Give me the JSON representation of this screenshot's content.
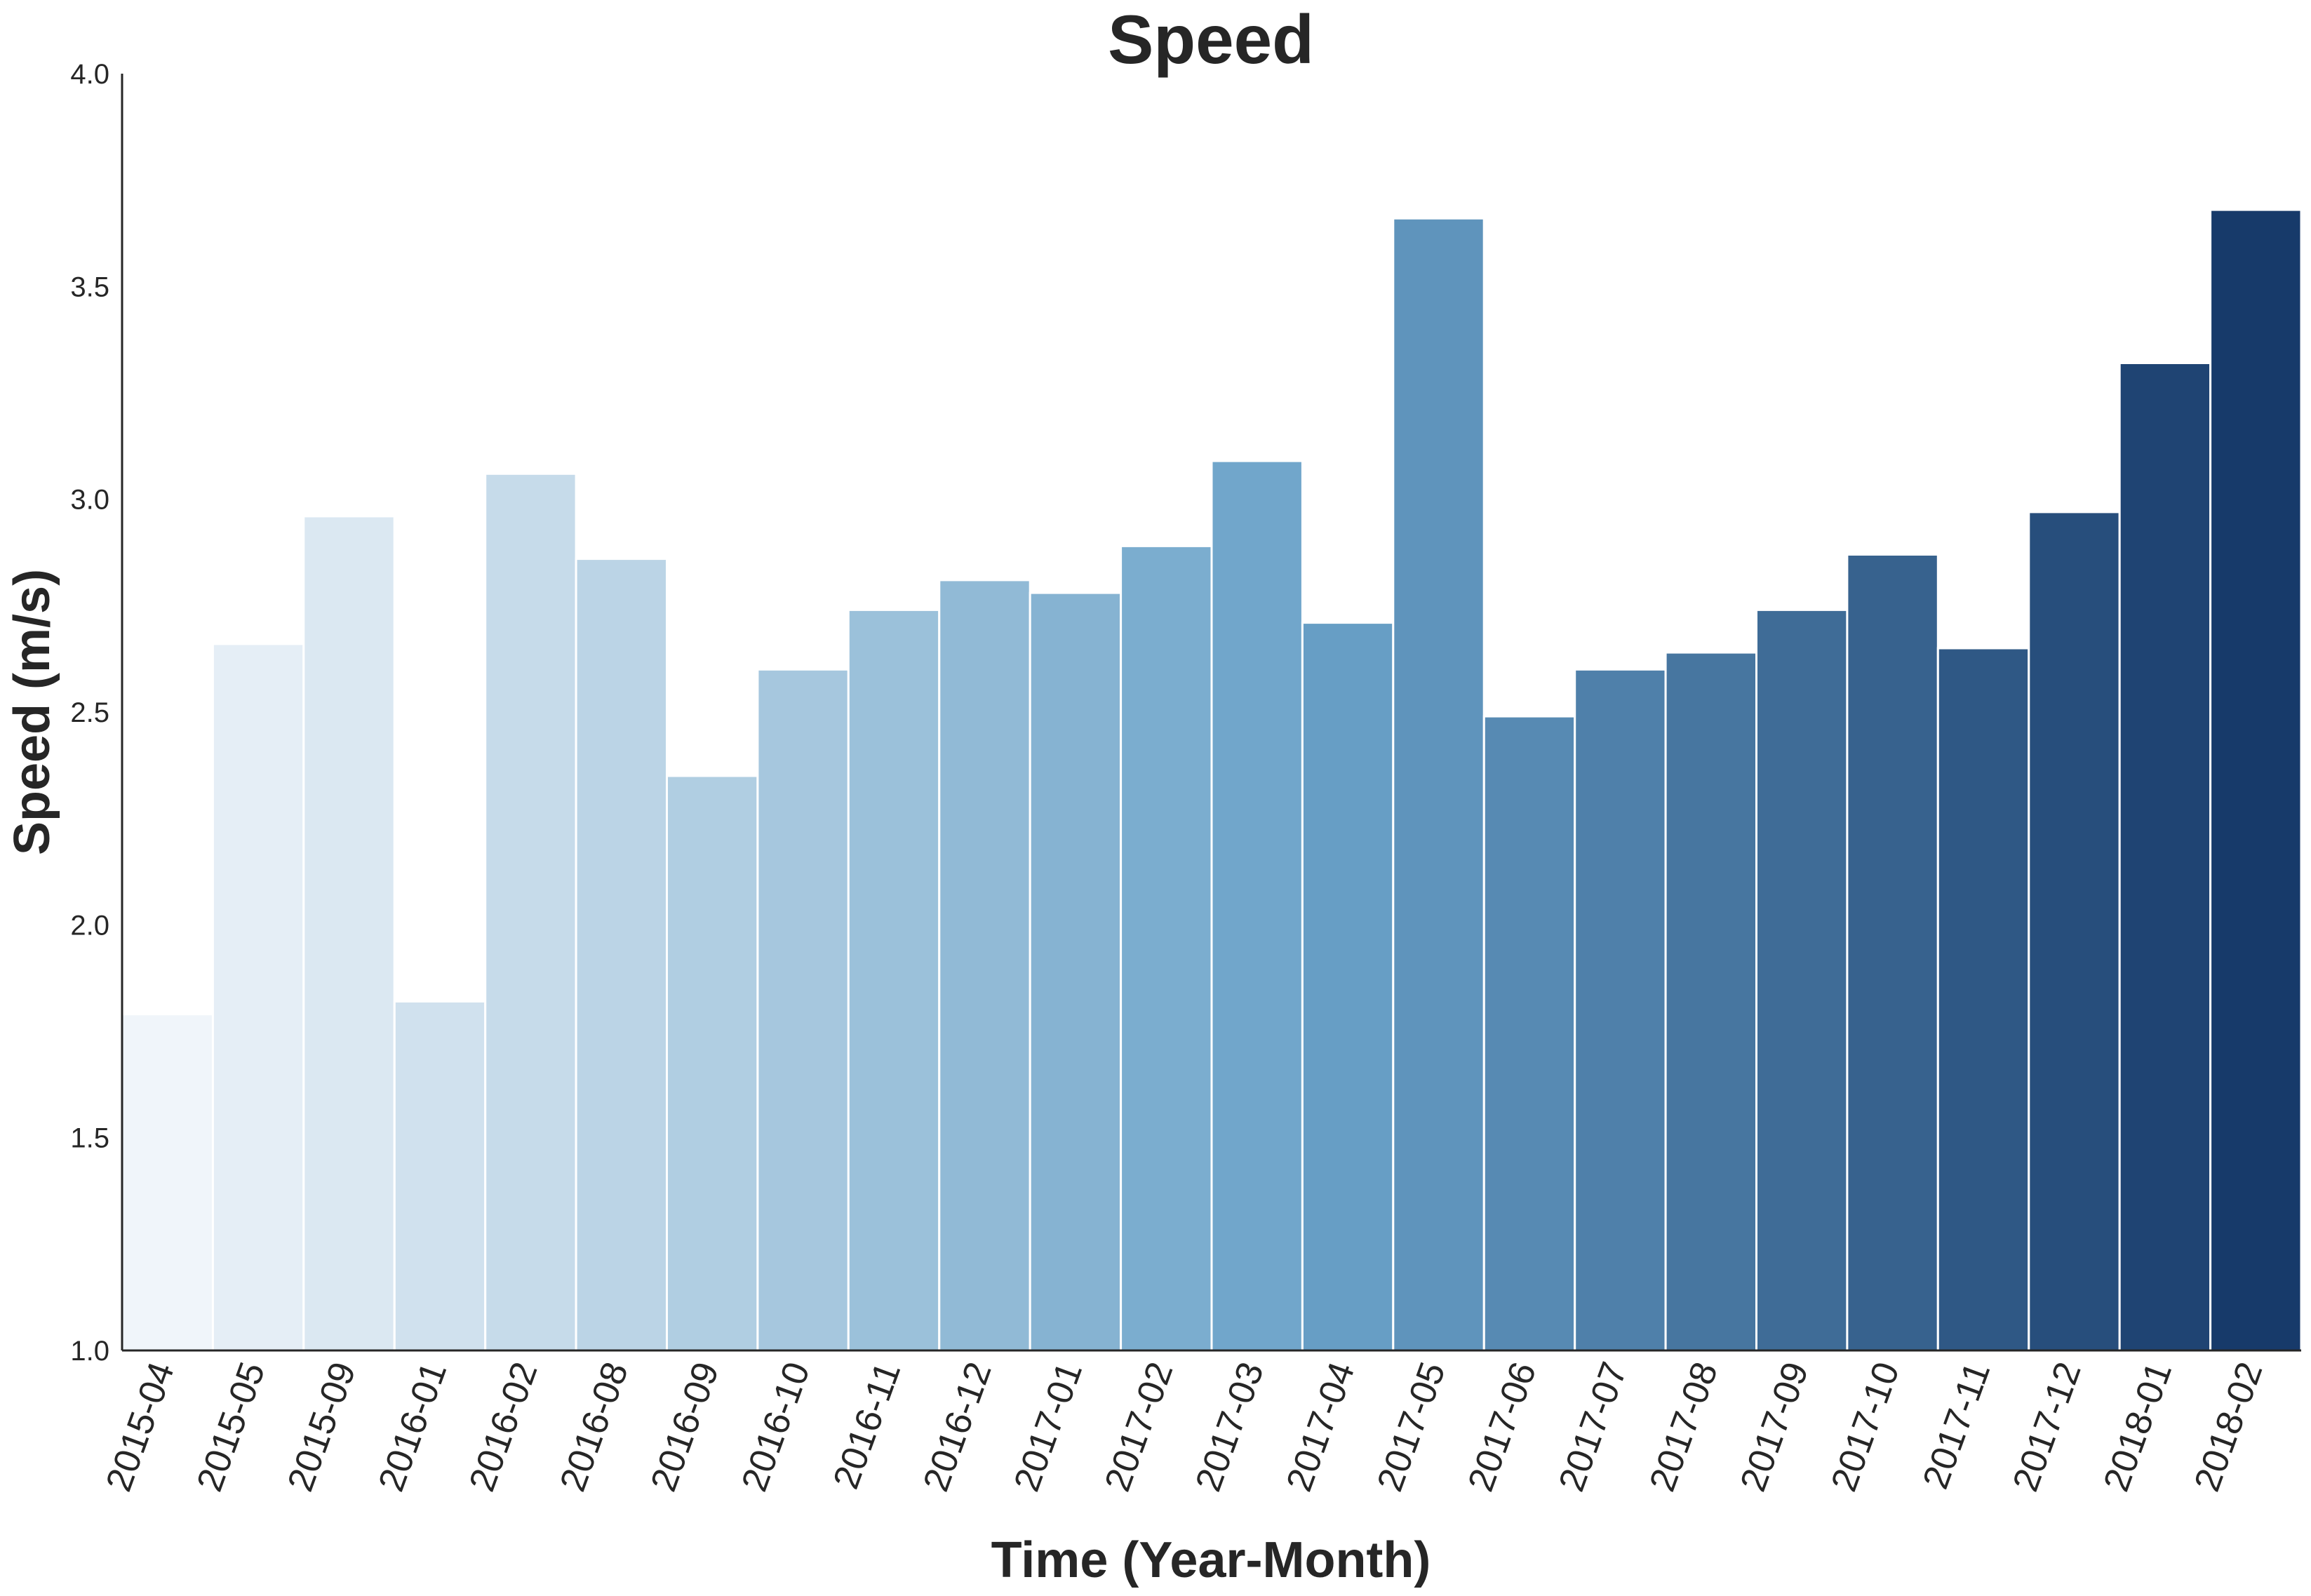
{
  "chart_data": {
    "type": "bar",
    "title": "Speed",
    "xlabel": "Time  (Year-Month)",
    "ylabel": "Speed (m/s)",
    "ylim": [
      1.0,
      4.0
    ],
    "yticks": [
      "1.0",
      "1.5",
      "2.0",
      "2.5",
      "3.0",
      "3.5",
      "4.0"
    ],
    "grid": false,
    "categories": [
      "2015-04",
      "2015-05",
      "2015-09",
      "2016-01",
      "2016-02",
      "2016-08",
      "2016-09",
      "2016-10",
      "2016-11",
      "2016-12",
      "2017-01",
      "2017-02",
      "2017-03",
      "2017-04",
      "2017-05",
      "2017-06",
      "2017-07",
      "2017-08",
      "2017-09",
      "2017-10",
      "2017-11",
      "2017-12",
      "2018-01",
      "2018-02"
    ],
    "values": [
      1.79,
      2.66,
      2.96,
      1.82,
      3.06,
      2.86,
      2.35,
      2.6,
      2.74,
      2.81,
      2.78,
      2.89,
      3.09,
      2.71,
      3.66,
      2.49,
      2.6,
      2.64,
      2.74,
      2.87,
      2.65,
      2.97,
      3.32,
      3.68
    ],
    "palette": {
      "light": "#f0f5fa",
      "mid": "#6aa2c8",
      "dark": "#173a6a"
    }
  }
}
